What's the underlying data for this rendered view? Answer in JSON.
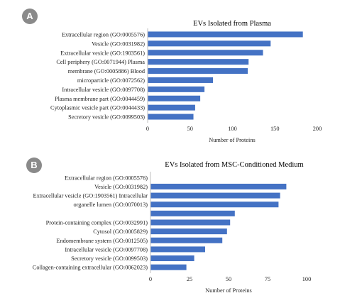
{
  "panels": [
    {
      "badge": "A",
      "chart_data": {
        "type": "bar",
        "orientation": "horizontal",
        "title": "EVs Isolated from Plasma",
        "xlabel": "Number of Proteins",
        "xlim": [
          0,
          200
        ],
        "xticks": [
          "0",
          "50",
          "100",
          "150",
          "200"
        ],
        "categories": [
          "Extracellular region (GO:0005576)",
          "Vesicle (GO:0031982)",
          "Extracellular vesicle (GO:1903561)",
          "Cell periphery (GO:0071944) Plasma",
          "membrane (GO:0005886) Blood",
          "microparticle (GO:0072562)",
          "Intracellular vesicle (GO:0097708)",
          "Plasma membrane part (GO:0044459)",
          "Cytoplasmic vesicle part (GO:0044433)",
          "Secretory vesicle (GO:0099503)"
        ],
        "values": [
          183,
          145,
          136,
          119,
          118,
          77,
          67,
          62,
          56,
          54
        ],
        "bar_color": "#4472c4"
      }
    },
    {
      "badge": "B",
      "chart_data": {
        "type": "bar",
        "orientation": "horizontal",
        "title": "EVs Isolated from MSC-Conditioned Medium",
        "xlabel": "Number of Proteins",
        "xlim": [
          0,
          100
        ],
        "xticks": [
          "0",
          "25",
          "50",
          "75",
          "100"
        ],
        "categories": [
          "Extracellular region (GO:0005576)",
          "Vesicle (GO:0031982)",
          "Extracellular vesicle (GO:1903561) Intracellular",
          "organelle lumen (GO:0070013)",
          "",
          "Protein-containing complex (GO:0032991)",
          "Cytosol (GO:0005829)",
          "Endomembrane system (GO:0012505)",
          "Intracellular vesicle (GO:0097708)",
          "Secretory vesicle (GO:0099503)",
          "Collagen-containing extracellular (GO:0062023)"
        ],
        "values": [
          null,
          87,
          83,
          82,
          54,
          51,
          49,
          46,
          35,
          28,
          23
        ],
        "bar_color": "#4472c4"
      }
    }
  ]
}
